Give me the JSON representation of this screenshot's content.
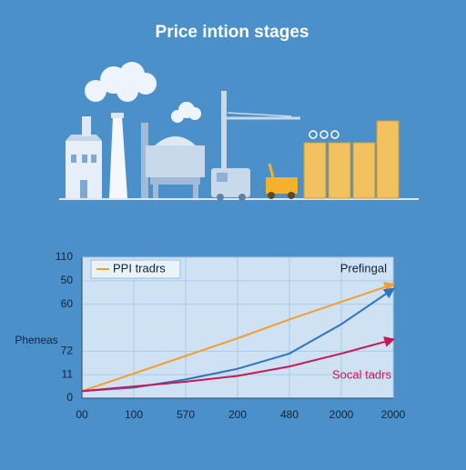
{
  "chart_data": {
    "type": "line",
    "title": "Price intion stages",
    "y_label": "Pheneas",
    "annotations": [
      "Prefingal"
    ],
    "categories": [
      "00",
      "100",
      "570",
      "200",
      "480",
      "2000",
      "2000"
    ],
    "series": [
      {
        "name": "PPI tradrs",
        "color": "#f0a030",
        "values": [
          6,
          21,
          36,
          51,
          67,
          82,
          97
        ]
      },
      {
        "color": "#2f74c0",
        "values": [
          6,
          9,
          16,
          25,
          38,
          63,
          93
        ]
      },
      {
        "name": "Socal tadrs",
        "color": "#c8185a",
        "values": [
          6,
          10,
          14,
          19,
          27,
          38,
          50
        ]
      }
    ],
    "ylim": [
      0,
      120
    ],
    "yticks": [
      0,
      {
        "value": 20,
        "label": "11"
      },
      {
        "value": 40,
        "label": "72"
      },
      {
        "value": 80,
        "label": "60"
      },
      {
        "value": 100,
        "label": "50"
      },
      {
        "value": 120,
        "label": "110"
      }
    ],
    "grid": true
  }
}
